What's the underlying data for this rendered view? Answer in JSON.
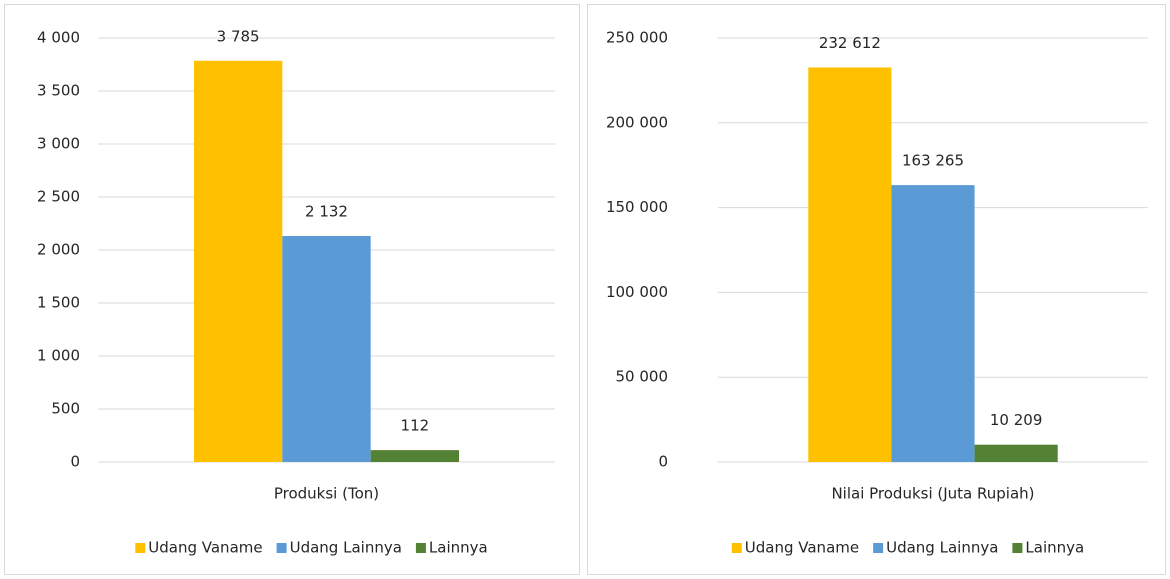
{
  "chart_data": [
    {
      "type": "bar",
      "categories": [
        "Produksi (Ton)"
      ],
      "series": [
        {
          "name": "Udang Vaname",
          "color": "#ffc000",
          "values": [
            3785
          ],
          "value_labels": [
            "3 785"
          ]
        },
        {
          "name": "Udang Lainnya",
          "color": "#5b9bd5",
          "values": [
            2132
          ],
          "value_labels": [
            "2 132"
          ]
        },
        {
          "name": "Lainnya",
          "color": "#548235",
          "values": [
            112
          ]
        }
      ],
      "ylim": [
        0,
        4000
      ],
      "yticks": [
        0,
        500,
        {
          "value": 1000,
          "label": "1 000"
        },
        {
          "value": 1500,
          "label": "1 500"
        },
        {
          "value": 2000,
          "label": "2 000"
        },
        {
          "value": 2500,
          "label": "2 500"
        },
        {
          "value": 3000,
          "label": "3 000"
        },
        {
          "value": 3500,
          "label": "3 500"
        },
        {
          "value": 4000,
          "label": "4 000"
        }
      ],
      "grid": true,
      "legend": "bottom"
    },
    {
      "type": "bar",
      "categories": [
        "Nilai Produksi (Juta Rupiah)"
      ],
      "series": [
        {
          "name": "Udang Vaname",
          "color": "#ffc000",
          "values": [
            232612
          ],
          "value_labels": [
            "232 612"
          ]
        },
        {
          "name": "Udang Lainnya",
          "color": "#5b9bd5",
          "values": [
            163265
          ],
          "value_labels": [
            "163 265"
          ]
        },
        {
          "name": "Lainnya",
          "color": "#548235",
          "values": [
            10209
          ],
          "value_labels": [
            "10 209"
          ]
        }
      ],
      "ylim": [
        0,
        250000
      ],
      "yticks": [
        0,
        {
          "value": 50000,
          "label": "50 000"
        },
        {
          "value": 100000,
          "label": "100 000"
        },
        {
          "value": 150000,
          "label": "150 000"
        },
        {
          "value": 200000,
          "label": "200 000"
        },
        {
          "value": 250000,
          "label": "250 000"
        }
      ],
      "grid": true,
      "legend": "bottom"
    }
  ]
}
